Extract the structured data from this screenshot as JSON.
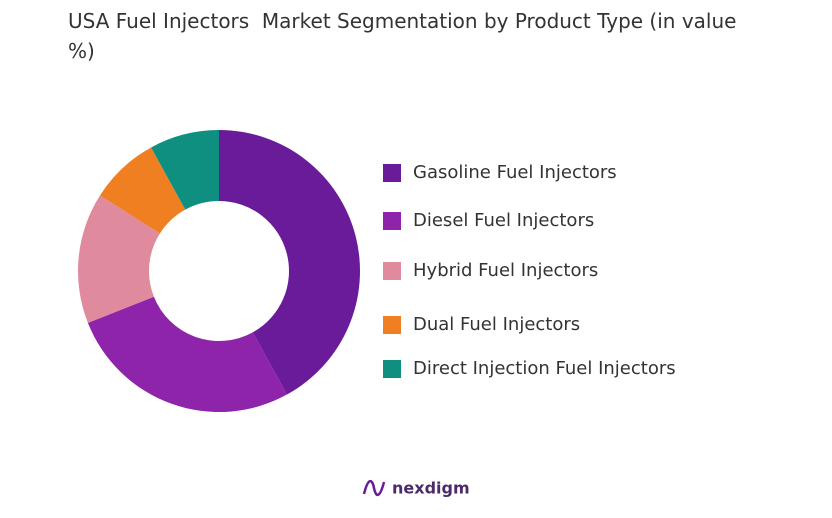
{
  "chart_data": {
    "type": "donut",
    "title": "USA Fuel Injectors  Market Segmentation by Product Type (in value %)",
    "categories": [
      "Gasoline Fuel Injectors",
      "Diesel Fuel Injectors",
      "Hybrid Fuel Injectors",
      "Dual Fuel Injectors",
      "Direct Injection Fuel Injectors"
    ],
    "values": [
      42,
      27,
      15,
      8,
      8
    ],
    "colors": [
      "#6a1b9a",
      "#8e24aa",
      "#e08a9e",
      "#f07f22",
      "#0f8f80"
    ]
  },
  "brand": "nexdigm"
}
